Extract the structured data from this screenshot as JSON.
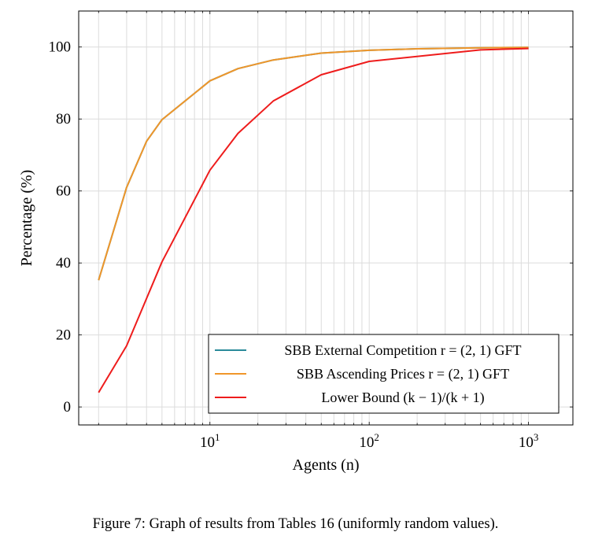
{
  "chart_data": {
    "type": "line",
    "x_scale": "log",
    "xlabel": "Agents (n)",
    "ylabel": "Percentage (%)",
    "xlim": [
      1.5,
      1900
    ],
    "ylim": [
      -5,
      110
    ],
    "grid": true,
    "legend_position": "bottom-right",
    "x_ticks": [
      {
        "value": 10,
        "base": "10",
        "exp": "1"
      },
      {
        "value": 100,
        "base": "10",
        "exp": "2"
      },
      {
        "value": 1000,
        "base": "10",
        "exp": "3"
      }
    ],
    "y_ticks": [
      0,
      20,
      40,
      60,
      80,
      100
    ],
    "series": [
      {
        "name": "SBB External Competition r = (2, 1) GFT",
        "color": "#2a8a9a",
        "x": [
          2,
          3,
          4,
          5,
          10,
          15,
          25,
          50,
          100,
          200,
          500,
          1000
        ],
        "y": [
          35.2,
          61.0,
          73.8,
          79.8,
          90.6,
          94.0,
          96.4,
          98.3,
          99.1,
          99.5,
          99.8,
          99.9
        ]
      },
      {
        "name": "SBB Ascending Prices r = (2, 1) GFT",
        "color": "#f0962a",
        "x": [
          2,
          3,
          4,
          5,
          10,
          15,
          25,
          50,
          100,
          200,
          500,
          1000
        ],
        "y": [
          35.2,
          61.0,
          73.8,
          79.8,
          90.6,
          94.0,
          96.4,
          98.3,
          99.1,
          99.5,
          99.8,
          99.9
        ]
      },
      {
        "name": "Lower Bound (k − 1)/(k + 1)",
        "color": "#ee1c1c",
        "x": [
          2,
          3,
          5,
          10,
          15,
          25,
          50,
          100,
          500,
          1000
        ],
        "y": [
          4.0,
          17.0,
          40.3,
          65.8,
          76.0,
          85.0,
          92.3,
          96.0,
          99.2,
          99.6
        ]
      }
    ]
  },
  "caption": "Figure 7: Graph of results from Tables 16 (uniformly random values)."
}
